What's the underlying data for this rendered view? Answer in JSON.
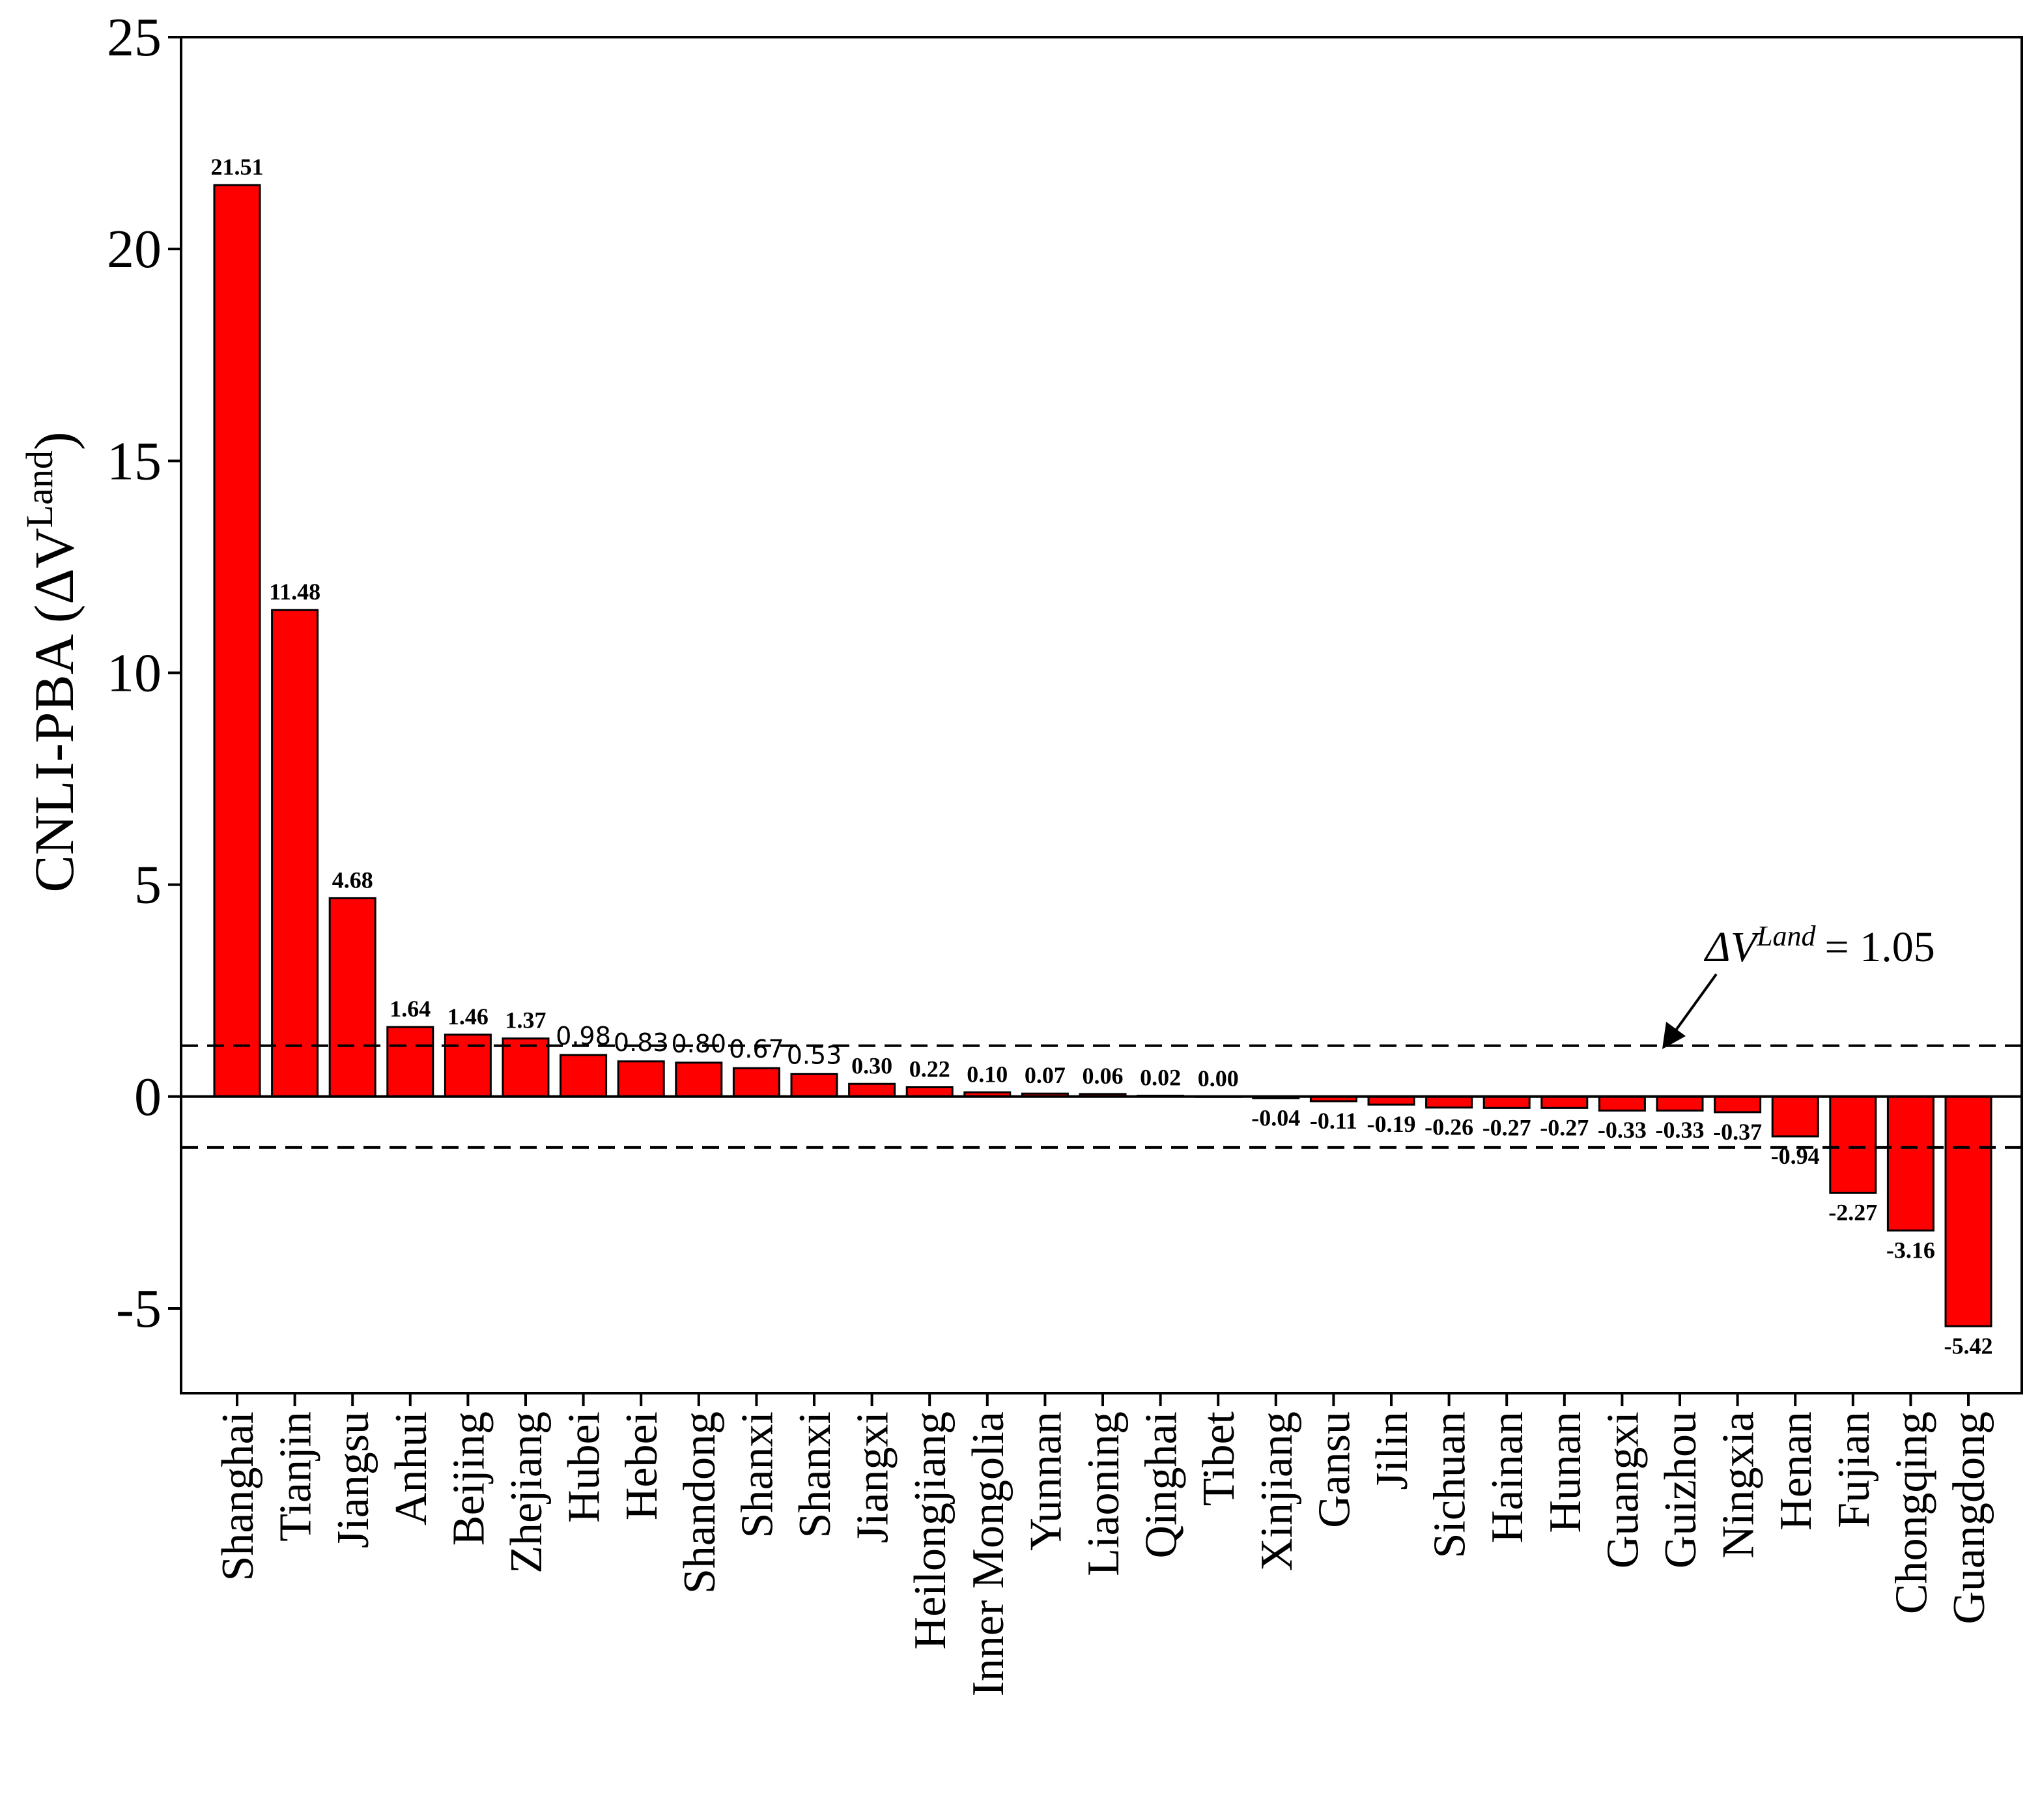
{
  "chart_data": {
    "type": "bar",
    "title": "",
    "xlabel": "",
    "ylabel": {
      "prefix": "CNLI-PBA (",
      "symbol": "ΔV",
      "superscript": "Land",
      "suffix": ")"
    },
    "ylim": [
      -7,
      25
    ],
    "yticks": [
      -5,
      0,
      5,
      10,
      15,
      20,
      25
    ],
    "bar_color": "#ff0000",
    "categories": [
      "Shanghai",
      "Tianjin",
      "Jiangsu",
      "Anhui",
      "Beijing",
      "Zhejiang",
      "Hubei",
      "Hebei",
      "Shandong",
      "Shanxi",
      "Shanxi",
      "Jiangxi",
      "Heilongjiang",
      "Inner Mongolia",
      "Yunnan",
      "Liaoning",
      "Qinghai",
      "Tibet",
      "Xinjiang",
      "Gansu",
      "Jilin",
      "Sichuan",
      "Hainan",
      "Hunan",
      "Guangxi",
      "Guizhou",
      "Ningxia",
      "Henan",
      "Fujian",
      "Chongqing",
      "Guangdong"
    ],
    "values": [
      21.51,
      11.48,
      4.68,
      1.64,
      1.46,
      1.37,
      0.98,
      0.83,
      0.8,
      0.67,
      0.53,
      0.3,
      0.22,
      0.1,
      0.07,
      0.06,
      0.02,
      0.0,
      -0.04,
      -0.11,
      -0.19,
      -0.26,
      -0.27,
      -0.27,
      -0.33,
      -0.33,
      -0.37,
      -0.94,
      -2.27,
      -3.16,
      -5.42
    ],
    "value_labels": [
      "21.51",
      "11.48",
      "4.68",
      "1.64",
      "1.46",
      "1.37",
      "0.98",
      "0.83",
      "0.80",
      "0.67",
      "0.53",
      "0.30",
      "0.22",
      "0.10",
      "0.07",
      "0.06",
      "0.02",
      "0.00",
      "-0.04",
      "-0.11",
      "-0.19",
      "-0.26",
      "-0.27",
      "-0.27",
      "-0.33",
      "-0.33",
      "-0.37",
      "-0.94",
      "-2.27",
      "-3.16",
      "-5.42"
    ],
    "plain_value_label_indices": [
      6,
      7,
      8,
      9,
      10
    ],
    "threshold_lines": [
      1.2,
      -1.2
    ],
    "annotation": {
      "symbol": "ΔV",
      "superscript": "Land",
      "text": "= 1.05"
    }
  }
}
